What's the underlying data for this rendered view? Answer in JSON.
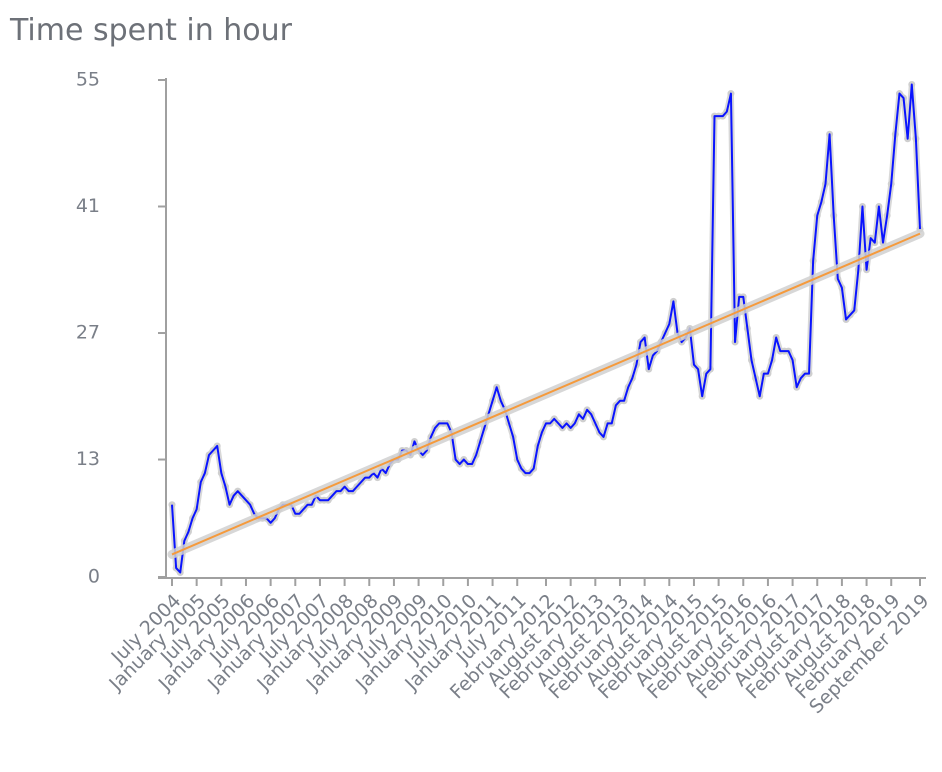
{
  "chart_data": {
    "type": "line",
    "title": "Time spent in hour",
    "categories": [
      "July 2004",
      null,
      null,
      null,
      null,
      null,
      "January 2005",
      null,
      null,
      null,
      null,
      null,
      "July 2005",
      null,
      null,
      null,
      null,
      null,
      "January 2006",
      null,
      null,
      null,
      null,
      null,
      "July 2006",
      null,
      null,
      null,
      null,
      null,
      "January 2007",
      null,
      null,
      null,
      null,
      null,
      "July 2007",
      null,
      null,
      null,
      null,
      null,
      "January 2008",
      null,
      null,
      null,
      null,
      null,
      "July 2008",
      null,
      null,
      null,
      null,
      null,
      "January 2009",
      null,
      null,
      null,
      null,
      null,
      "July 2009",
      null,
      null,
      null,
      null,
      null,
      "January 2010",
      null,
      null,
      null,
      null,
      null,
      "July 2010",
      null,
      null,
      null,
      null,
      null,
      "January 2011",
      null,
      null,
      null,
      null,
      null,
      "July 2011",
      null,
      null,
      null,
      null,
      null,
      null,
      "February 2012",
      null,
      null,
      null,
      null,
      null,
      "August 2012",
      null,
      null,
      null,
      null,
      null,
      "February 2013",
      null,
      null,
      null,
      null,
      null,
      "August 2013",
      null,
      null,
      null,
      null,
      null,
      "February 2014",
      null,
      null,
      null,
      null,
      null,
      "August 2014",
      null,
      null,
      null,
      null,
      null,
      "February 2015",
      null,
      null,
      null,
      null,
      null,
      "August 2015",
      null,
      null,
      null,
      null,
      null,
      "February 2016",
      null,
      null,
      null,
      null,
      null,
      "August 2016",
      null,
      null,
      null,
      null,
      null,
      "February 2017",
      null,
      null,
      null,
      null,
      null,
      "August 2017",
      null,
      null,
      null,
      null,
      null,
      "February 2018",
      null,
      null,
      null,
      null,
      null,
      "August 2018",
      null,
      null,
      null,
      null,
      null,
      "February 2019",
      null,
      null,
      null,
      null,
      null,
      null,
      "September 2019"
    ],
    "series": [
      {
        "color": "#0a14ff",
        "values": [
          8,
          1,
          0.5,
          4,
          5,
          6.5,
          7.5,
          10.5,
          11.5,
          13.5,
          14,
          14.5,
          11.5,
          10,
          8,
          9,
          9.5,
          9,
          8.5,
          8,
          7,
          6.5,
          6.5,
          6.5,
          6,
          6.5,
          7.5,
          8,
          8,
          8,
          7,
          7,
          7.5,
          8,
          8,
          9,
          8.5,
          8.5,
          8.5,
          9,
          9.5,
          9.5,
          10,
          9.5,
          9.5,
          10,
          10.5,
          11,
          11,
          11.5,
          11,
          12,
          11.5,
          12.5,
          13,
          13,
          14,
          14,
          13.5,
          15,
          14,
          13.5,
          14,
          15.5,
          16.5,
          17,
          17,
          17,
          16,
          13,
          12.5,
          13,
          12.5,
          12.5,
          13.5,
          15,
          16.5,
          18,
          19.5,
          21,
          19.5,
          18.5,
          17,
          15.5,
          13,
          12,
          11.5,
          11.5,
          12,
          14.5,
          16,
          17,
          17,
          17.5,
          17,
          16.5,
          17,
          16.5,
          17,
          18,
          17.5,
          18.5,
          18,
          17,
          16,
          15.5,
          17,
          17,
          19,
          19.5,
          19.5,
          21,
          22,
          23.5,
          26,
          26.5,
          23,
          24.5,
          25,
          26,
          27,
          28,
          30.5,
          27,
          26,
          26.5,
          27.5,
          23.5,
          23,
          20,
          22.5,
          23,
          51,
          51,
          51,
          51.5,
          53.5,
          26,
          31,
          31,
          27.5,
          24,
          22,
          20,
          22.5,
          22.5,
          24,
          26.5,
          25,
          25,
          25,
          24,
          21,
          22,
          22.5,
          22.5,
          35,
          40,
          41.5,
          43.5,
          49,
          40,
          33,
          32,
          28.5,
          29,
          29.5,
          34,
          41,
          34,
          37.5,
          37,
          41,
          37,
          40,
          43.5,
          49,
          53.5,
          53,
          48.5,
          54.5,
          48.5,
          38.5
        ]
      }
    ],
    "trendline": {
      "color": "#f59a3c",
      "values": [
        2.5,
        38
      ]
    },
    "ylim": [
      0,
      55
    ],
    "yticks": [
      0,
      13,
      27,
      41,
      55
    ],
    "grid": false
  }
}
